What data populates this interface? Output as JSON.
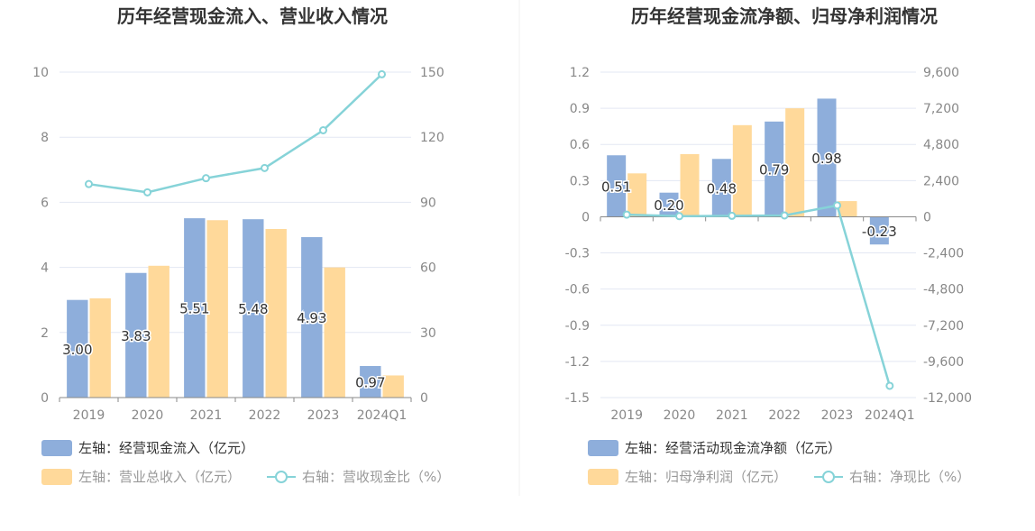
{
  "colors": {
    "bar_blue": "#8eaedb",
    "bar_orange": "#ffd99a",
    "line": "#86d3d8",
    "grid": "#e3e7f3",
    "axis": "#8a8a8a",
    "legend_dark": "#333333",
    "legend_muted": "#999999"
  },
  "chart_data": [
    {
      "type": "bar",
      "title": "历年经营现金流入、营业收入情况",
      "categories": [
        "2019",
        "2020",
        "2021",
        "2022",
        "2023",
        "2024Q1"
      ],
      "left_axis": {
        "min": 0,
        "max": 10,
        "ticks": [
          "0",
          "2",
          "4",
          "6",
          "8",
          "10"
        ]
      },
      "right_axis": {
        "min": 0,
        "max": 150,
        "ticks": [
          "0",
          "30",
          "60",
          "90",
          "120",
          "150"
        ]
      },
      "series": [
        {
          "name": "左轴：经营现金流入（亿元）",
          "axis": "left",
          "kind": "bar",
          "values": [
            3.0,
            3.83,
            5.51,
            5.48,
            4.93,
            0.97
          ],
          "labels": [
            "3.00",
            "3.83",
            "5.51",
            "5.48",
            "4.93",
            "0.97"
          ]
        },
        {
          "name": "左轴：营业总收入（亿元）",
          "axis": "left",
          "kind": "bar",
          "values": [
            3.05,
            4.05,
            5.45,
            5.18,
            4.0,
            0.68
          ]
        },
        {
          "name": "右轴：营收现金比（%）",
          "axis": "right",
          "kind": "line",
          "values": [
            98.4,
            94.6,
            101.1,
            105.8,
            123.2,
            149.0
          ]
        }
      ]
    },
    {
      "type": "bar",
      "title": "历年经营现金流净额、归母净利润情况",
      "categories": [
        "2019",
        "2020",
        "2021",
        "2022",
        "2023",
        "2024Q1"
      ],
      "left_axis": {
        "min": -1.5,
        "max": 1.2,
        "ticks": [
          "-1.5",
          "-1.2",
          "-0.9",
          "-0.6",
          "-0.3",
          "0",
          "0.3",
          "0.6",
          "0.9",
          "1.2"
        ]
      },
      "right_axis": {
        "min": -12000,
        "max": 9600,
        "ticks": [
          "-12,000",
          "-9,600",
          "-7,200",
          "-4,800",
          "-2,400",
          "0",
          "2,400",
          "4,800",
          "7,200",
          "9,600"
        ]
      },
      "series": [
        {
          "name": "左轴：经营活动现金流净额（亿元）",
          "axis": "left",
          "kind": "bar",
          "values": [
            0.51,
            0.2,
            0.48,
            0.79,
            0.98,
            -0.23
          ],
          "labels": [
            "0.51",
            "0.20",
            "0.48",
            "0.79",
            "0.98",
            "-0.23"
          ]
        },
        {
          "name": "左轴：归母净利润（亿元）",
          "axis": "left",
          "kind": "bar",
          "values": [
            0.36,
            0.52,
            0.76,
            0.9,
            0.13,
            0.0
          ]
        },
        {
          "name": "右轴：净现比（%）",
          "axis": "right",
          "kind": "line",
          "values": [
            142,
            38,
            63,
            88,
            754,
            -11220
          ]
        }
      ]
    }
  ]
}
